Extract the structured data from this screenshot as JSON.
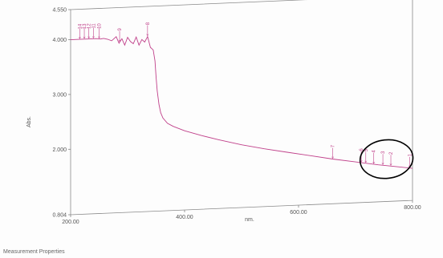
{
  "chart_data": {
    "type": "line",
    "xlabel": "nm.",
    "ylabel": "Abs.",
    "xlim": [
      200.0,
      800.0
    ],
    "ylim": [
      0.804,
      4.55
    ],
    "x_ticks": [
      "200.00",
      "400.00",
      "600.00",
      "800.00"
    ],
    "y_ticks": [
      "0.804",
      "2.000",
      "3.000",
      "4.000",
      "4.550"
    ],
    "grid": false,
    "series": [
      {
        "color": "#c0408a",
        "points": [
          [
            200,
            4.0
          ],
          [
            215,
            4.0
          ],
          [
            230,
            4.0
          ],
          [
            245,
            4.0
          ],
          [
            252,
            3.99
          ],
          [
            258,
            4.0
          ],
          [
            265,
            3.98
          ],
          [
            272,
            3.95
          ],
          [
            280,
            4.02
          ],
          [
            285,
            3.9
          ],
          [
            290,
            3.98
          ],
          [
            295,
            3.86
          ],
          [
            300,
            4.0
          ],
          [
            305,
            3.92
          ],
          [
            310,
            3.88
          ],
          [
            315,
            4.0
          ],
          [
            320,
            3.85
          ],
          [
            325,
            3.95
          ],
          [
            330,
            3.9
          ],
          [
            335,
            4.0
          ],
          [
            340,
            3.8
          ],
          [
            345,
            3.75
          ],
          [
            348,
            3.55
          ],
          [
            350,
            3.25
          ],
          [
            352,
            3.0
          ],
          [
            355,
            2.75
          ],
          [
            358,
            2.6
          ],
          [
            362,
            2.5
          ],
          [
            370,
            2.4
          ],
          [
            380,
            2.34
          ],
          [
            400,
            2.25
          ],
          [
            430,
            2.15
          ],
          [
            460,
            2.06
          ],
          [
            500,
            1.95
          ],
          [
            540,
            1.86
          ],
          [
            580,
            1.78
          ],
          [
            620,
            1.7
          ],
          [
            660,
            1.62
          ],
          [
            700,
            1.55
          ],
          [
            740,
            1.48
          ],
          [
            780,
            1.42
          ],
          [
            800,
            1.39
          ]
        ]
      }
    ],
    "peaks": [
      {
        "x": 216,
        "label": "14"
      },
      {
        "x": 224,
        "label": "13"
      },
      {
        "x": 232,
        "label": "12"
      },
      {
        "x": 240,
        "label": "11"
      },
      {
        "x": 250,
        "label": "10"
      },
      {
        "x": 286,
        "label": "9"
      },
      {
        "x": 335,
        "label": "8"
      },
      {
        "x": 660,
        "label": "7"
      },
      {
        "x": 710,
        "label": "6"
      },
      {
        "x": 718,
        "label": "5"
      },
      {
        "x": 732,
        "label": "4"
      },
      {
        "x": 748,
        "label": "3"
      },
      {
        "x": 762,
        "label": "2"
      },
      {
        "x": 795,
        "label": "1"
      }
    ],
    "annotation": "circle around peaks 1-6"
  },
  "footer_text": "Measurement Properties"
}
